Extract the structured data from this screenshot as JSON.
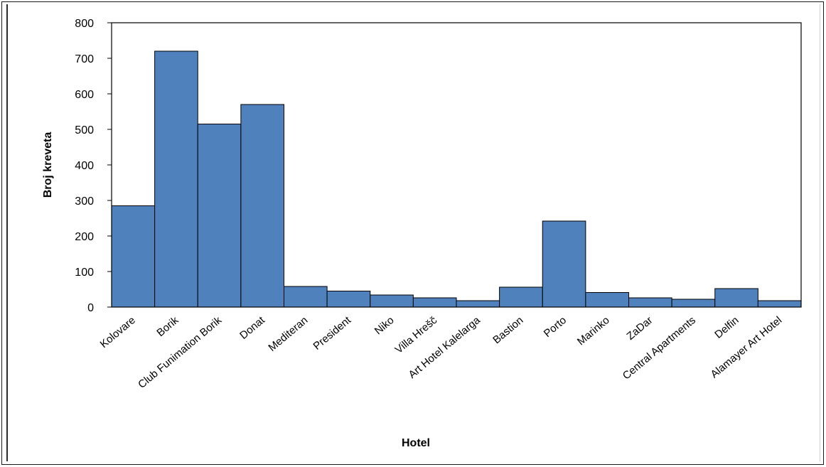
{
  "chart_data": {
    "type": "bar",
    "title": "",
    "xlabel": "Hotel",
    "ylabel": "Broj kreveta",
    "ylim": [
      0,
      800
    ],
    "yticks": [
      "0",
      "100",
      "200",
      "300",
      "400",
      "500",
      "600",
      "700",
      "800"
    ],
    "grid": false,
    "legend": "none",
    "bar_color": "#4f81bd",
    "bar_edge_color": "#000000",
    "categories": [
      "Kolovare",
      "Borik",
      "Club Funimation Borik",
      "Donat",
      "Mediteran",
      "President",
      "Niko",
      "Villa Hrešč",
      "Art Hotel Kalelarga",
      "Bastion",
      "Porto",
      "Marinko",
      "ZaDar",
      "Central Apartments",
      "Delfin",
      "Alamayer Art Hotel"
    ],
    "values": [
      285,
      720,
      515,
      570,
      58,
      45,
      34,
      26,
      18,
      56,
      242,
      41,
      26,
      22,
      52,
      18
    ]
  }
}
